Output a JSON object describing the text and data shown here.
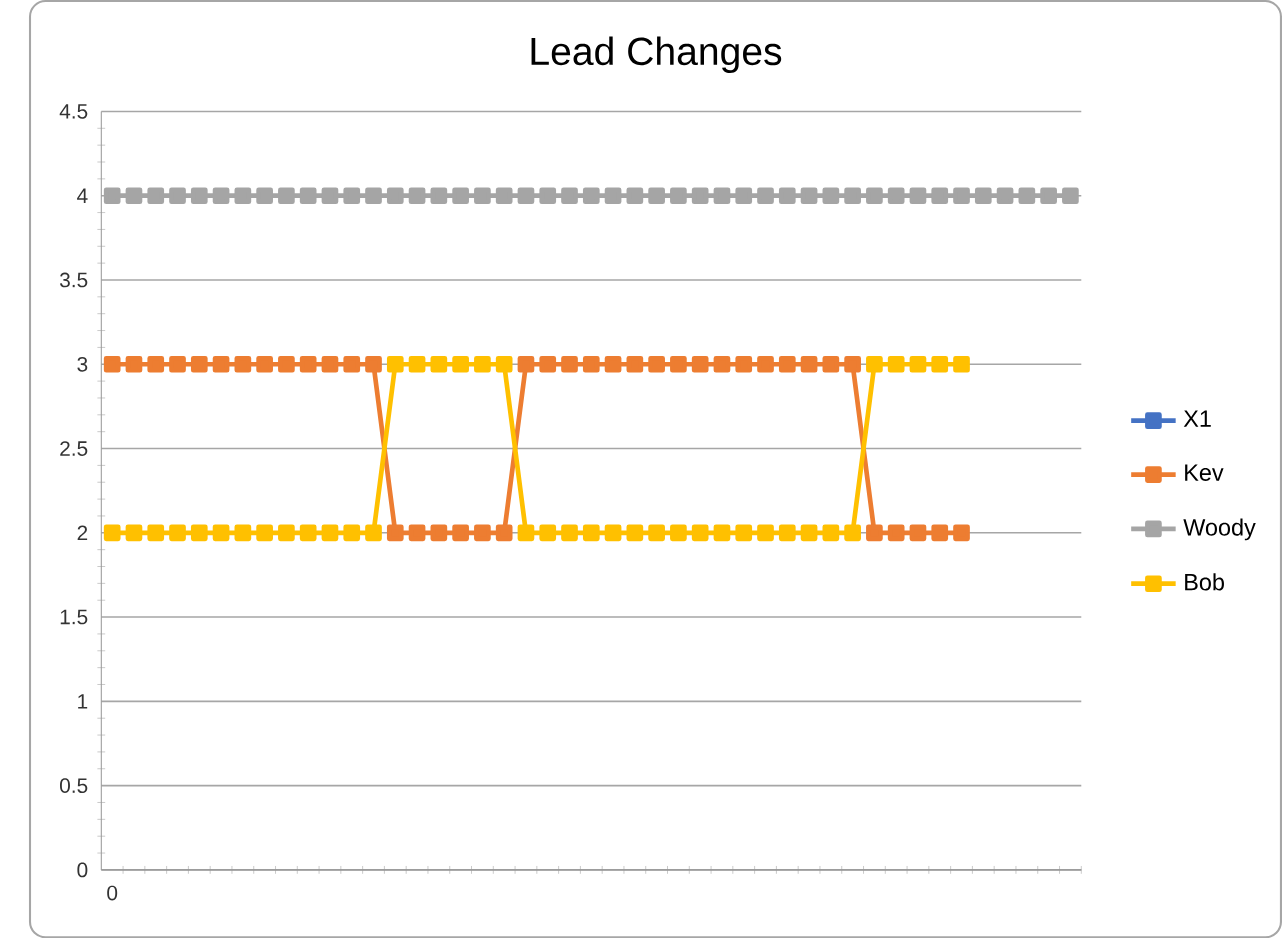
{
  "chart_data": {
    "type": "line",
    "title": "Lead Changes",
    "categories": [
      "0",
      null,
      null,
      null,
      null,
      null,
      null,
      null,
      null,
      null,
      null,
      null,
      null,
      null,
      null,
      null,
      null,
      null,
      null,
      null,
      null,
      null,
      null,
      null,
      null,
      null,
      null,
      null,
      null,
      null,
      null,
      null,
      null,
      null,
      null,
      null,
      null,
      null,
      null,
      null,
      null,
      null,
      null,
      null,
      null
    ],
    "series": [
      {
        "name": "X1",
        "color": "#4472c4",
        "values": [
          null,
          null,
          null,
          null,
          null,
          null,
          null,
          null,
          null,
          null,
          null,
          null,
          null,
          null,
          null,
          null,
          null,
          null,
          null,
          null,
          null,
          null,
          null,
          null,
          null,
          null,
          null,
          null,
          null,
          null,
          null,
          null,
          null,
          null,
          null,
          null,
          null,
          null,
          null,
          null,
          null,
          null,
          null,
          null,
          null
        ]
      },
      {
        "name": "Kev",
        "color": "#ed7d31",
        "values": [
          3,
          3,
          3,
          3,
          3,
          3,
          3,
          3,
          3,
          3,
          3,
          3,
          3,
          2,
          2,
          2,
          2,
          2,
          2,
          3,
          3,
          3,
          3,
          3,
          3,
          3,
          3,
          3,
          3,
          3,
          3,
          3,
          3,
          3,
          3,
          2,
          2,
          2,
          2,
          2,
          null,
          null,
          null,
          null,
          null
        ]
      },
      {
        "name": "Woody",
        "color": "#a5a5a5",
        "values": [
          4,
          4,
          4,
          4,
          4,
          4,
          4,
          4,
          4,
          4,
          4,
          4,
          4,
          4,
          4,
          4,
          4,
          4,
          4,
          4,
          4,
          4,
          4,
          4,
          4,
          4,
          4,
          4,
          4,
          4,
          4,
          4,
          4,
          4,
          4,
          4,
          4,
          4,
          4,
          4,
          4,
          4,
          4,
          4,
          4
        ]
      },
      {
        "name": "Bob",
        "color": "#ffc000",
        "values": [
          2,
          2,
          2,
          2,
          2,
          2,
          2,
          2,
          2,
          2,
          2,
          2,
          2,
          3,
          3,
          3,
          3,
          3,
          3,
          2,
          2,
          2,
          2,
          2,
          2,
          2,
          2,
          2,
          2,
          2,
          2,
          2,
          2,
          2,
          2,
          3,
          3,
          3,
          3,
          3,
          null,
          null,
          null,
          null,
          null
        ]
      }
    ],
    "ylim": [
      0,
      4.5
    ],
    "yticks": [
      0,
      0.5,
      1,
      1.5,
      2,
      2.5,
      3,
      3.5,
      4,
      4.5
    ],
    "grid": "y",
    "legend": "right",
    "marker": "square",
    "line_style": "solid"
  }
}
